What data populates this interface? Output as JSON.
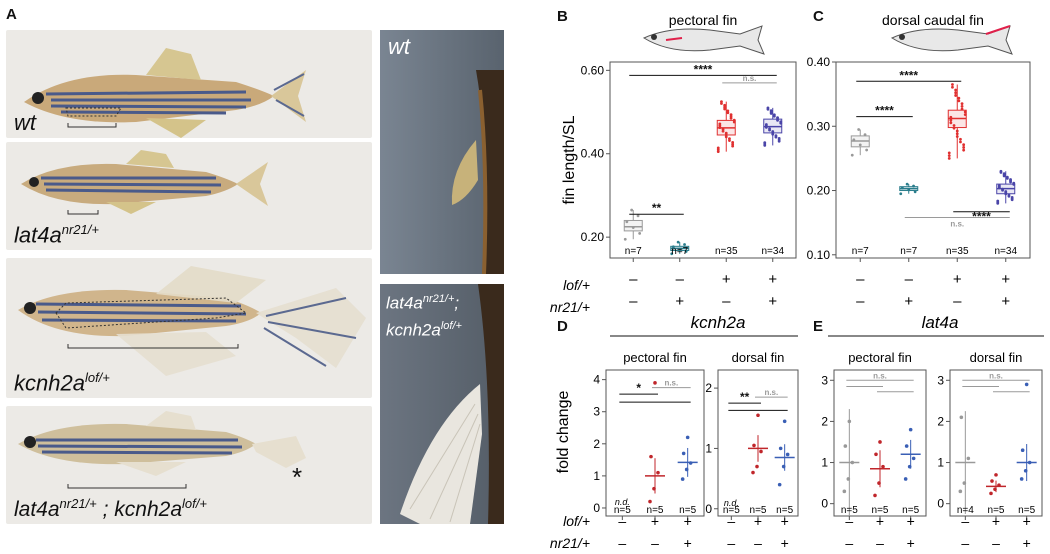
{
  "panels": {
    "A": "A",
    "B": "B",
    "C": "C",
    "D": "D",
    "E": "E"
  },
  "panel_a": {
    "rows": [
      {
        "base": "wt",
        "sup": ""
      },
      {
        "base": "lat4a",
        "sup": "nr21/+"
      },
      {
        "base": "kcnh2a",
        "sup": "lof/+"
      },
      {
        "base": "lat4a",
        "sup": "nr21/+",
        "sep": " ; ",
        "base2": "kcnh2a",
        "sup2": "lof/+"
      }
    ],
    "asterisk": "*",
    "close_top": {
      "base": "wt"
    },
    "close_bottom": {
      "line1_base": "lat4a",
      "line1_sup": "nr21/+",
      "line1_sep": ";",
      "line2_base": "kcnh2a",
      "line2_sup": "lof/+"
    }
  },
  "lof_label": "lof/+",
  "nr21_label": "nr21/+",
  "chart_data": [
    {
      "id": "B",
      "type": "box",
      "title": "pectoral fin",
      "ylabel": "fin length/SL",
      "ylim": [
        0.15,
        0.62
      ],
      "yticks": [
        0.2,
        0.4,
        0.6
      ],
      "ytick_labels": [
        "0.20",
        "0.40",
        "0.60"
      ],
      "lof": [
        "–",
        "–",
        "+",
        "+"
      ],
      "nr21": [
        "–",
        "+",
        "–",
        "+"
      ],
      "counts": [
        "n=7",
        "n=7",
        "n=35",
        "n=34"
      ],
      "groups": [
        {
          "q1": 0.215,
          "median": 0.225,
          "q3": 0.24,
          "low": 0.195,
          "high": 0.265,
          "color": "#999999"
        },
        {
          "q1": 0.168,
          "median": 0.173,
          "q3": 0.178,
          "low": 0.16,
          "high": 0.188,
          "color": "#2a7d8c"
        },
        {
          "q1": 0.445,
          "median": 0.462,
          "q3": 0.48,
          "low": 0.405,
          "high": 0.525,
          "color": "#e03030"
        },
        {
          "q1": 0.45,
          "median": 0.465,
          "q3": 0.483,
          "low": 0.42,
          "high": 0.51,
          "color": "#4a45a8"
        }
      ],
      "brackets": [
        {
          "from": 0,
          "to": 1,
          "y": 0.255,
          "label": "**",
          "gray": false
        },
        {
          "from": 0,
          "to": 3,
          "y": 0.588,
          "label": "****",
          "gray": false
        },
        {
          "from": 2,
          "to": 3,
          "y": 0.57,
          "label": "n.s.",
          "gray": true
        }
      ]
    },
    {
      "id": "C",
      "type": "box",
      "title": "dorsal caudal fin",
      "ylabel": "",
      "ylim": [
        0.095,
        0.4
      ],
      "yticks": [
        0.1,
        0.2,
        0.3,
        0.4
      ],
      "ytick_labels": [
        "0.10",
        "0.20",
        "0.30",
        "0.40"
      ],
      "lof": [
        "–",
        "–",
        "+",
        "+"
      ],
      "nr21": [
        "–",
        "+",
        "–",
        "+"
      ],
      "counts": [
        "n=7",
        "n=7",
        "n=35",
        "n=34"
      ],
      "groups": [
        {
          "q1": 0.268,
          "median": 0.277,
          "q3": 0.285,
          "low": 0.255,
          "high": 0.295,
          "color": "#999999"
        },
        {
          "q1": 0.2,
          "median": 0.203,
          "q3": 0.206,
          "low": 0.195,
          "high": 0.21,
          "color": "#2a7d8c"
        },
        {
          "q1": 0.298,
          "median": 0.312,
          "q3": 0.325,
          "low": 0.25,
          "high": 0.365,
          "color": "#e03030"
        },
        {
          "q1": 0.195,
          "median": 0.203,
          "q3": 0.21,
          "low": 0.18,
          "high": 0.23,
          "color": "#4a45a8"
        }
      ],
      "brackets": [
        {
          "from": 0,
          "to": 1,
          "y": 0.315,
          "label": "****",
          "gray": false
        },
        {
          "from": 0,
          "to": 2,
          "y": 0.37,
          "label": "****",
          "gray": false
        },
        {
          "from": 2,
          "to": 3,
          "y": 0.167,
          "label": "****",
          "gray": false,
          "below": true
        },
        {
          "from": 1,
          "to": 3,
          "y": 0.158,
          "label": "n.s.",
          "gray": true,
          "below": true
        }
      ]
    },
    {
      "id": "D",
      "type": "scatter",
      "gene": "kcnh2a",
      "panels": [
        {
          "title": "pectoral fin",
          "ylabel": "fold change",
          "ylim": [
            -0.25,
            4.3
          ],
          "yticks": [
            0,
            1,
            2,
            3,
            4
          ],
          "ytick_labels": [
            "0",
            "1",
            "2",
            "3",
            "4"
          ],
          "nd": "n.d.",
          "counts": [
            "n=5",
            "n=5",
            "n=5"
          ],
          "groups": [
            {
              "mean": null,
              "err": 0,
              "points": [],
              "color": "#999999"
            },
            {
              "mean": 1.0,
              "err": 0.55,
              "points": [
                0.2,
                0.6,
                1.1,
                1.6,
                3.9
              ],
              "color": "#c0262b"
            },
            {
              "mean": 1.42,
              "err": 0.45,
              "points": [
                0.9,
                1.2,
                1.4,
                1.7,
                2.2
              ],
              "color": "#3a5fb5"
            }
          ],
          "brackets": [
            {
              "from": 0,
              "to": 1,
              "y": 3.55,
              "label": "*",
              "gray": false
            },
            {
              "from": 0,
              "to": 2,
              "y": 3.3,
              "label": "",
              "gray": false
            },
            {
              "from": 1,
              "to": 2,
              "y": 3.75,
              "label": "n.s.",
              "gray": true
            }
          ]
        },
        {
          "title": "dorsal fin",
          "ylabel": "",
          "ylim": [
            -0.12,
            2.3
          ],
          "yticks": [
            0,
            1,
            2
          ],
          "ytick_labels": [
            "0",
            "1",
            "2"
          ],
          "nd": "n.d.",
          "counts": [
            "n=5",
            "n=5",
            "n=5"
          ],
          "groups": [
            {
              "mean": null,
              "err": 0,
              "points": [],
              "color": "#999999"
            },
            {
              "mean": 1.0,
              "err": 0.22,
              "points": [
                0.6,
                0.7,
                0.95,
                1.05,
                1.55
              ],
              "color": "#c0262b"
            },
            {
              "mean": 0.85,
              "err": 0.22,
              "points": [
                0.4,
                0.7,
                0.9,
                1.0,
                1.45
              ],
              "color": "#3a5fb5"
            }
          ],
          "brackets": [
            {
              "from": 0,
              "to": 1,
              "y": 1.75,
              "label": "**",
              "gray": false
            },
            {
              "from": 0,
              "to": 2,
              "y": 1.63,
              "label": "",
              "gray": false
            },
            {
              "from": 1,
              "to": 2,
              "y": 1.85,
              "label": "n.s.",
              "gray": true
            }
          ]
        }
      ]
    },
    {
      "id": "E",
      "type": "scatter",
      "gene": "lat4a",
      "panels": [
        {
          "title": "pectoral fin",
          "ylabel": "",
          "ylim": [
            -0.3,
            3.25
          ],
          "yticks": [
            0,
            1,
            2,
            3
          ],
          "ytick_labels": [
            "0",
            "1",
            "2",
            "3"
          ],
          "counts": [
            "n=5",
            "n=5",
            "n=5"
          ],
          "groups": [
            {
              "mean": 1.0,
              "err": 1.3,
              "points": [
                0.3,
                0.6,
                1.0,
                1.4,
                2.0
              ],
              "color": "#999999"
            },
            {
              "mean": 0.85,
              "err": 0.45,
              "points": [
                0.2,
                0.5,
                0.9,
                1.2,
                1.5
              ],
              "color": "#c0262b"
            },
            {
              "mean": 1.2,
              "err": 0.35,
              "points": [
                0.6,
                0.9,
                1.1,
                1.4,
                1.8
              ],
              "color": "#3a5fb5"
            }
          ],
          "brackets": [
            {
              "from": 0,
              "to": 1,
              "y": 2.85,
              "label": "",
              "gray": true
            },
            {
              "from": 0,
              "to": 2,
              "y": 3.0,
              "label": "n.s.",
              "gray": true
            },
            {
              "from": 1,
              "to": 2,
              "y": 2.72,
              "label": "",
              "gray": true
            }
          ]
        },
        {
          "title": "dorsal fin",
          "ylabel": "",
          "ylim": [
            -0.3,
            3.25
          ],
          "yticks": [
            0,
            1,
            2,
            3
          ],
          "ytick_labels": [
            "0",
            "1",
            "2",
            "3"
          ],
          "counts": [
            "n=4",
            "n=5",
            "n=5"
          ],
          "groups": [
            {
              "mean": 1.0,
              "err": 1.25,
              "points": [
                0.3,
                0.5,
                1.1,
                2.1
              ],
              "color": "#999999"
            },
            {
              "mean": 0.42,
              "err": 0.14,
              "points": [
                0.25,
                0.35,
                0.45,
                0.55,
                0.7
              ],
              "color": "#c0262b"
            },
            {
              "mean": 1.0,
              "err": 0.45,
              "points": [
                0.6,
                0.8,
                1.0,
                1.3,
                2.9
              ],
              "color": "#3a5fb5"
            }
          ],
          "brackets": [
            {
              "from": 0,
              "to": 1,
              "y": 2.85,
              "label": "",
              "gray": true
            },
            {
              "from": 0,
              "to": 2,
              "y": 3.0,
              "label": "n.s.",
              "gray": true
            },
            {
              "from": 1,
              "to": 2,
              "y": 2.72,
              "label": "",
              "gray": true
            }
          ]
        }
      ]
    }
  ]
}
